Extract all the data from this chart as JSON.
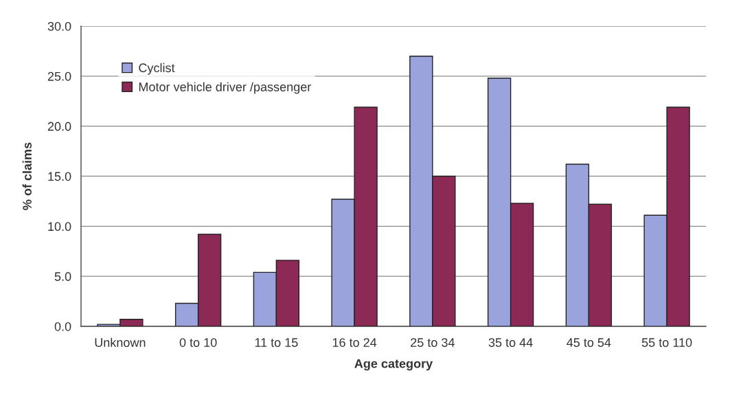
{
  "chart_data": {
    "type": "bar",
    "xlabel": "Age category",
    "ylabel": "% of claims",
    "categories": [
      "Unknown",
      "0 to 10",
      "11 to 15",
      "16 to 24",
      "25 to 34",
      "35 to 44",
      "45 to 54",
      "55 to 110"
    ],
    "series": [
      {
        "name": "Cyclist",
        "color": "#9aa3dc",
        "values": [
          0.2,
          2.3,
          5.4,
          12.7,
          27.0,
          24.8,
          16.2,
          11.1
        ]
      },
      {
        "name": "Motor vehicle driver /passenger",
        "color": "#8c2a55",
        "values": [
          0.7,
          9.2,
          6.6,
          21.9,
          15.0,
          12.3,
          12.2,
          21.9
        ]
      }
    ],
    "ylim": [
      0,
      30
    ],
    "yticks": [
      {
        "value": 0,
        "label": "0.0"
      },
      {
        "value": 5,
        "label": "5.0"
      },
      {
        "value": 10,
        "label": "10.0"
      },
      {
        "value": 15,
        "label": "15.0"
      },
      {
        "value": 20,
        "label": "20.0"
      },
      {
        "value": 25,
        "label": "25.0"
      },
      {
        "value": 30,
        "label": "30.0"
      }
    ],
    "grid": "y",
    "legend": "top left"
  }
}
